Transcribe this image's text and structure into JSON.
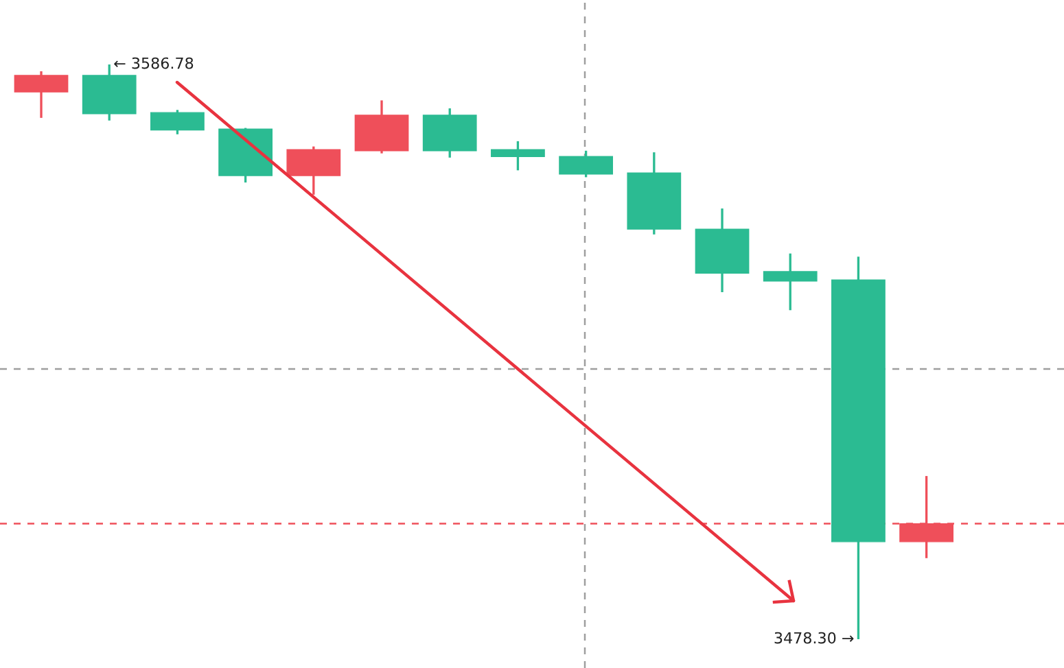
{
  "chart_data": {
    "type": "candlestick",
    "categories": [
      null,
      null,
      null,
      null,
      null,
      null,
      null,
      null,
      null,
      null,
      null,
      null,
      null,
      null
    ],
    "ohlc": [
      [
        3584.7,
        3585.5,
        3576.7,
        3581.6
      ],
      [
        3577.5,
        3586.78,
        3576.2,
        3584.7
      ],
      [
        3574.4,
        3578.2,
        3573.6,
        3577.7
      ],
      [
        3565.8,
        3574.8,
        3564.5,
        3574.6
      ],
      [
        3570.7,
        3571.3,
        3562.2,
        3565.8
      ],
      [
        3577.2,
        3580.0,
        3570.0,
        3570.5
      ],
      [
        3570.5,
        3578.5,
        3569.2,
        3577.2
      ],
      [
        3569.4,
        3572.3,
        3566.8,
        3570.7
      ],
      [
        3566.1,
        3570.5,
        3565.5,
        3569.4
      ],
      [
        3555.7,
        3570.2,
        3554.7,
        3566.3
      ],
      [
        3547.4,
        3559.6,
        3543.8,
        3555.7
      ],
      [
        3545.9,
        3551.1,
        3540.4,
        3547.7
      ],
      [
        3496.7,
        3550.5,
        3478.3,
        3546.1
      ],
      [
        3500.1,
        3509.1,
        3493.6,
        3496.7
      ]
    ],
    "colors": [
      "#ef4f5a",
      "#2bbb92",
      "#2bbb92",
      "#2bbb92",
      "#ef4f5a",
      "#ef4f5a",
      "#2bbb92",
      "#2bbb92",
      "#2bbb92",
      "#2bbb92",
      "#2bbb92",
      "#2bbb92",
      "#2bbb92",
      "#ef4f5a"
    ],
    "ref_lines": [
      {
        "axis": "y",
        "value": 3529.3,
        "color": "#9e9e9e",
        "line_style": "dashed"
      },
      {
        "axis": "y",
        "value": 3500.1,
        "color": "#ef4f5a",
        "line_style": "dashed"
      }
    ],
    "annotations": [
      "← 3586.78",
      "3478.30 →"
    ]
  }
}
